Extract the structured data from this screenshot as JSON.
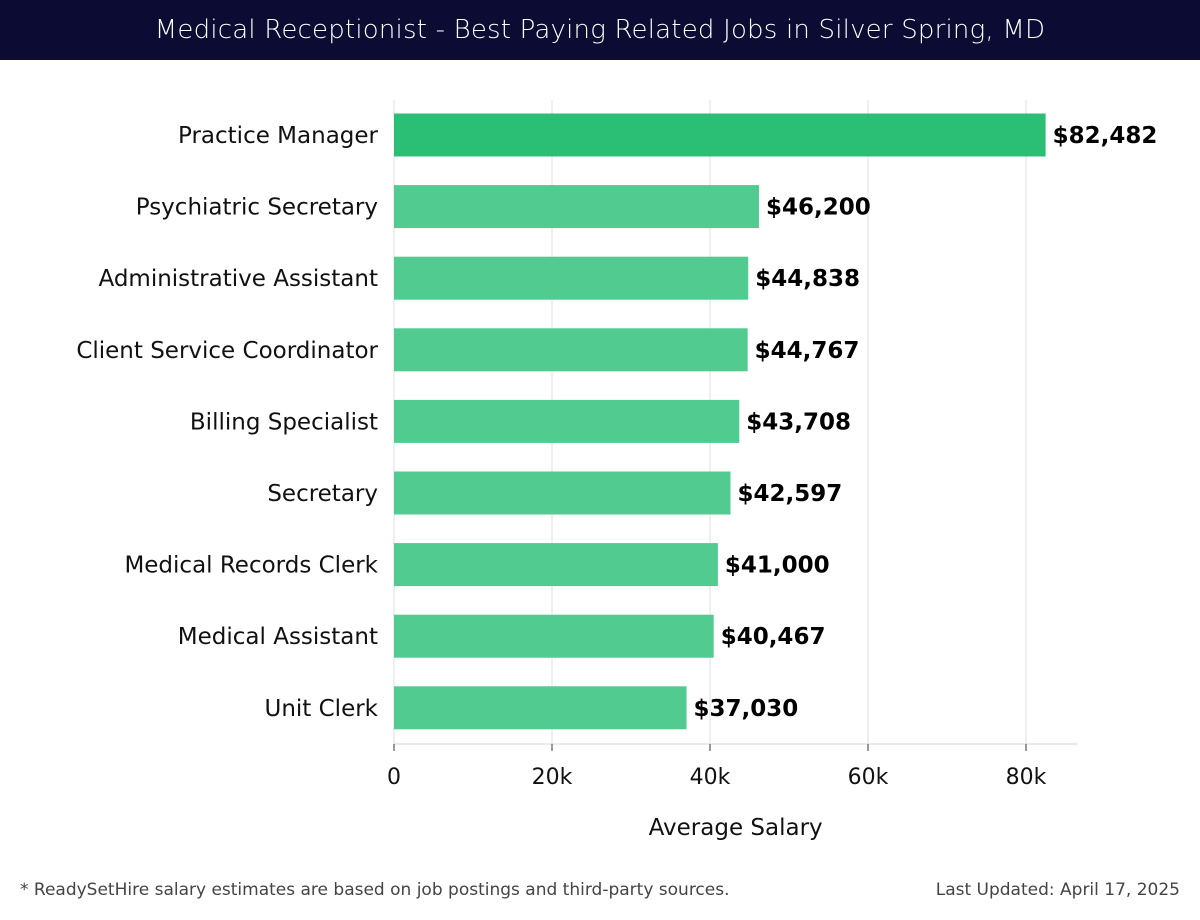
{
  "header": {
    "title": "Medical Receptionist - Best Paying Related Jobs in Silver Spring, MD"
  },
  "footer": {
    "note": "* ReadySetHire salary estimates are based on job postings and third-party sources.",
    "updated": "Last Updated: April 17, 2025"
  },
  "colors": {
    "highlight_bar": "#2bbf76",
    "bar": "#52cb91",
    "title_bg": "#0b0b33",
    "grid": "#e6e6e6"
  },
  "chart_data": {
    "type": "bar",
    "orientation": "horizontal",
    "title": "Medical Receptionist - Best Paying Related Jobs in Silver Spring, MD",
    "xlabel": "Average Salary",
    "ylabel": "",
    "xlim": [
      0,
      86500
    ],
    "grid": true,
    "categories": [
      "Practice Manager",
      "Psychiatric Secretary",
      "Administrative Assistant",
      "Client Service Coordinator",
      "Billing Specialist",
      "Secretary",
      "Medical Records Clerk",
      "Medical Assistant",
      "Unit Clerk"
    ],
    "values": [
      82482,
      46200,
      44838,
      44767,
      43708,
      42597,
      41000,
      40467,
      37030
    ],
    "value_labels": [
      "$82,482",
      "$46,200",
      "$44,838",
      "$44,767",
      "$43,708",
      "$42,597",
      "$41,000",
      "$40,467",
      "$37,030"
    ],
    "highlight_index": 0,
    "xticks": [
      0,
      20000,
      40000,
      60000,
      80000
    ],
    "xtick_labels": [
      "0",
      "20k",
      "40k",
      "60k",
      "80k"
    ]
  }
}
